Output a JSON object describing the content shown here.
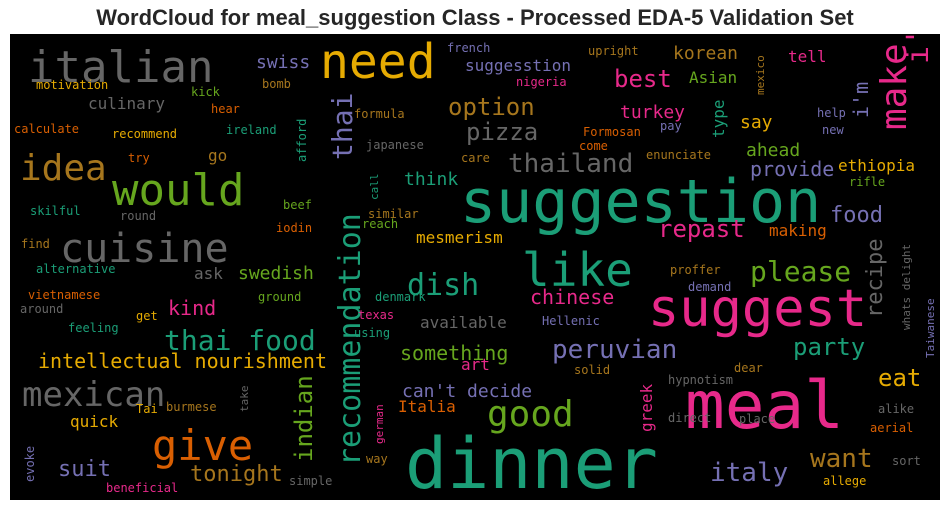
{
  "chart_data": {
    "type": "wordcloud",
    "title": "WordCloud for meal_suggestion Class - Processed EDA-5 Validation Set",
    "background": "#000000",
    "words": [
      {
        "text": "suggestion",
        "color": "#1b9e77"
      },
      {
        "text": "meal",
        "color": "#e7298a"
      },
      {
        "text": "dinner",
        "color": "#1b9e77"
      },
      {
        "text": "suggest",
        "color": "#e7298a"
      },
      {
        "text": "need",
        "color": "#e6ab02"
      },
      {
        "text": "would",
        "color": "#66a61e"
      },
      {
        "text": "like",
        "color": "#1b9e77"
      },
      {
        "text": "italian",
        "color": "#666666"
      },
      {
        "text": "cuisine",
        "color": "#666666"
      },
      {
        "text": "give",
        "color": "#d95f02"
      },
      {
        "text": "recommendation",
        "color": "#1b9e77"
      },
      {
        "text": "good",
        "color": "#66a61e"
      },
      {
        "text": "idea",
        "color": "#a6761d"
      },
      {
        "text": "make",
        "color": "#e7298a"
      },
      {
        "text": "thai food",
        "color": "#1b9e77"
      },
      {
        "text": "mexican",
        "color": "#666666"
      },
      {
        "text": "dish",
        "color": "#1b9e77"
      },
      {
        "text": "please",
        "color": "#66a61e"
      },
      {
        "text": "i'd",
        "color": "#e7298a"
      },
      {
        "text": "thai",
        "color": "#7570b3"
      },
      {
        "text": "thailand",
        "color": "#666666"
      },
      {
        "text": "peruvian",
        "color": "#7570b3"
      },
      {
        "text": "indian",
        "color": "#66a61e"
      },
      {
        "text": "option",
        "color": "#a6761d"
      },
      {
        "text": "best",
        "color": "#e7298a"
      },
      {
        "text": "repast",
        "color": "#e7298a"
      },
      {
        "text": "pizza",
        "color": "#666666"
      },
      {
        "text": "party",
        "color": "#1b9e77"
      },
      {
        "text": "food",
        "color": "#7570b3"
      },
      {
        "text": "eat",
        "color": "#e6ab02"
      },
      {
        "text": "want",
        "color": "#a6761d"
      },
      {
        "text": "italy",
        "color": "#7570b3"
      },
      {
        "text": "recipe",
        "color": "#666666"
      },
      {
        "text": "intellectual nourishment",
        "color": "#e6ab02"
      },
      {
        "text": "something",
        "color": "#66a61e"
      },
      {
        "text": "chinese",
        "color": "#e7298a"
      },
      {
        "text": "kind",
        "color": "#e7298a"
      },
      {
        "text": "tonight",
        "color": "#a6761d"
      },
      {
        "text": "suit",
        "color": "#7570b3"
      },
      {
        "text": "swedish",
        "color": "#66a61e"
      },
      {
        "text": "provide",
        "color": "#7570b3"
      },
      {
        "text": "ahead",
        "color": "#66a61e"
      },
      {
        "text": "think",
        "color": "#1b9e77"
      },
      {
        "text": "korean",
        "color": "#a6761d"
      },
      {
        "text": "turkey",
        "color": "#e7298a"
      },
      {
        "text": "culinary",
        "color": "#666666"
      },
      {
        "text": "swiss",
        "color": "#7570b3"
      },
      {
        "text": "can't decide",
        "color": "#7570b3"
      },
      {
        "text": "mesmerism",
        "color": "#e6ab02"
      },
      {
        "text": "quick",
        "color": "#e6ab02"
      },
      {
        "text": "ethiopia",
        "color": "#e6ab02"
      },
      {
        "text": "making",
        "color": "#d95f02"
      },
      {
        "text": "say",
        "color": "#e6ab02"
      },
      {
        "text": "i'm",
        "color": "#7570b3"
      },
      {
        "text": "suggesstion",
        "color": "#7570b3"
      },
      {
        "text": "Asian",
        "color": "#66a61e"
      },
      {
        "text": "type",
        "color": "#1b9e77"
      },
      {
        "text": "available",
        "color": "#666666"
      },
      {
        "text": "Italia",
        "color": "#d95f02"
      },
      {
        "text": "greek",
        "color": "#e7298a"
      },
      {
        "text": "ask",
        "color": "#666666"
      },
      {
        "text": "go",
        "color": "#a6761d"
      },
      {
        "text": "tell",
        "color": "#e7298a"
      },
      {
        "text": "french",
        "color": "#7570b3"
      },
      {
        "text": "upright",
        "color": "#a6761d"
      },
      {
        "text": "nigeria",
        "color": "#e7298a"
      },
      {
        "text": "mexico",
        "color": "#a6761d"
      },
      {
        "text": "motivation",
        "color": "#e6ab02"
      },
      {
        "text": "kick",
        "color": "#66a61e"
      },
      {
        "text": "bomb",
        "color": "#a6761d"
      },
      {
        "text": "hear",
        "color": "#d95f02"
      },
      {
        "text": "calculate",
        "color": "#d95f02"
      },
      {
        "text": "recommend",
        "color": "#e6ab02"
      },
      {
        "text": "ireland",
        "color": "#1b9e77"
      },
      {
        "text": "formula",
        "color": "#a6761d"
      },
      {
        "text": "Formosan",
        "color": "#d95f02"
      },
      {
        "text": "pay",
        "color": "#7570b3"
      },
      {
        "text": "help",
        "color": "#7570b3"
      },
      {
        "text": "new",
        "color": "#7570b3"
      },
      {
        "text": "japanese",
        "color": "#666666"
      },
      {
        "text": "come",
        "color": "#d95f02"
      },
      {
        "text": "try",
        "color": "#d95f02"
      },
      {
        "text": "afford",
        "color": "#1b9e77"
      },
      {
        "text": "care",
        "color": "#a6761d"
      },
      {
        "text": "enunciate",
        "color": "#a6761d"
      },
      {
        "text": "rifle",
        "color": "#66a61e"
      },
      {
        "text": "skilful",
        "color": "#1b9e77"
      },
      {
        "text": "beef",
        "color": "#66a61e"
      },
      {
        "text": "call",
        "color": "#1b9e77"
      },
      {
        "text": "similar",
        "color": "#a6761d"
      },
      {
        "text": "round",
        "color": "#666666"
      },
      {
        "text": "iodin",
        "color": "#d95f02"
      },
      {
        "text": "reach",
        "color": "#66a61e"
      },
      {
        "text": "find",
        "color": "#a6761d"
      },
      {
        "text": "alternative",
        "color": "#1b9e77"
      },
      {
        "text": "proffer",
        "color": "#a6761d"
      },
      {
        "text": "whats delight",
        "color": "#666666"
      },
      {
        "text": "vietnamese",
        "color": "#d95f02"
      },
      {
        "text": "around",
        "color": "#666666"
      },
      {
        "text": "ground",
        "color": "#66a61e"
      },
      {
        "text": "denmark",
        "color": "#1b9e77"
      },
      {
        "text": "demand",
        "color": "#7570b3"
      },
      {
        "text": "get",
        "color": "#e6ab02"
      },
      {
        "text": "texas",
        "color": "#e7298a"
      },
      {
        "text": "feeling",
        "color": "#1b9e77"
      },
      {
        "text": "using",
        "color": "#1b9e77"
      },
      {
        "text": "Hellenic",
        "color": "#7570b3"
      },
      {
        "text": "Taiwanese",
        "color": "#7570b3"
      },
      {
        "text": "art",
        "color": "#e7298a"
      },
      {
        "text": "dear",
        "color": "#a6761d"
      },
      {
        "text": "solid",
        "color": "#a6761d"
      },
      {
        "text": "hypnotism",
        "color": "#666666"
      },
      {
        "text": "Tai",
        "color": "#e6ab02"
      },
      {
        "text": "burmese",
        "color": "#a6761d"
      },
      {
        "text": "take",
        "color": "#666666"
      },
      {
        "text": "german",
        "color": "#e7298a"
      },
      {
        "text": "alike",
        "color": "#666666"
      },
      {
        "text": "aerial",
        "color": "#d95f02"
      },
      {
        "text": "direct",
        "color": "#666666"
      },
      {
        "text": "place",
        "color": "#666666"
      },
      {
        "text": "evoke",
        "color": "#7570b3"
      },
      {
        "text": "way",
        "color": "#a6761d"
      },
      {
        "text": "sort",
        "color": "#666666"
      },
      {
        "text": "beneficial",
        "color": "#e7298a"
      },
      {
        "text": "simple",
        "color": "#666666"
      },
      {
        "text": "allege",
        "color": "#e6ab02"
      }
    ]
  }
}
